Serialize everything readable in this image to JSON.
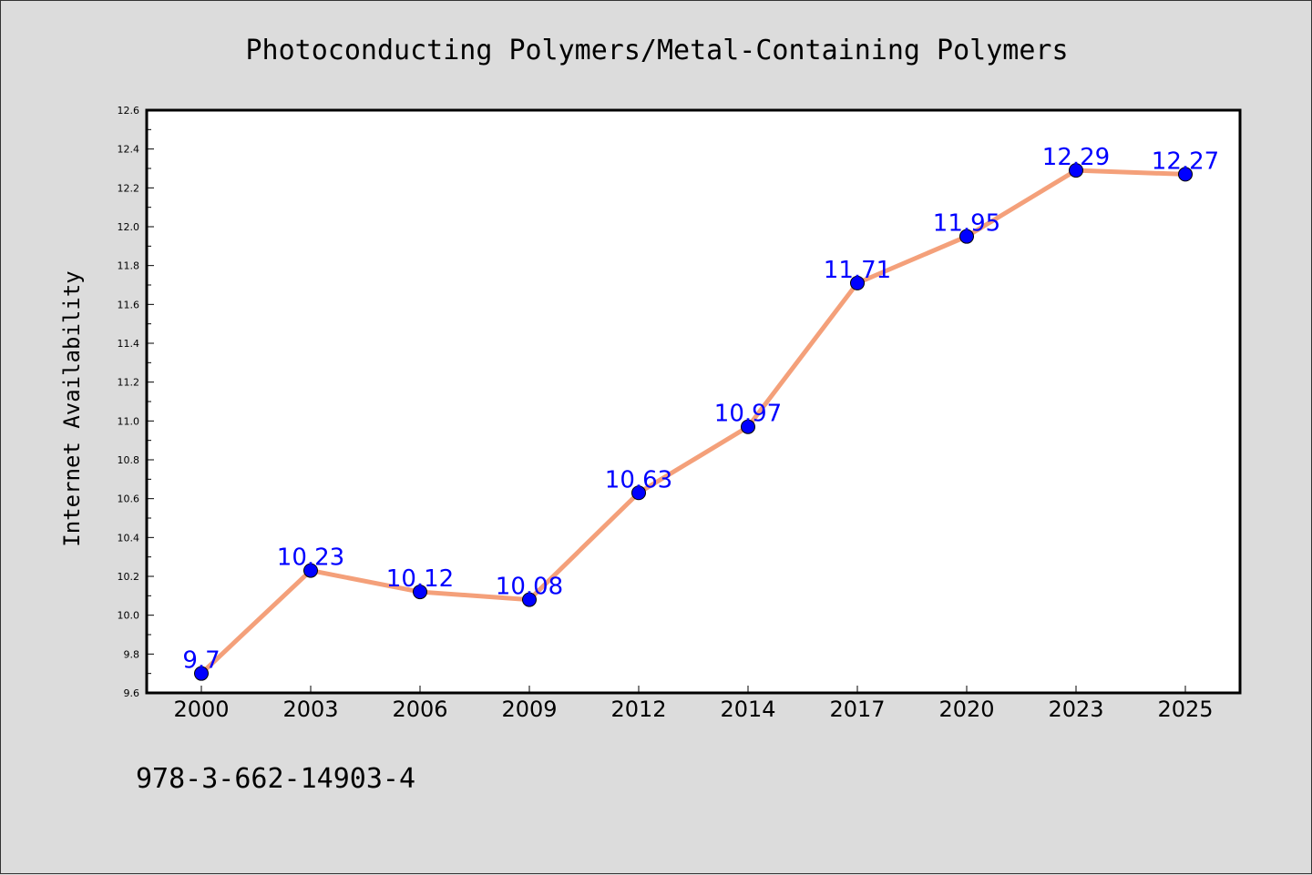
{
  "chart_data": {
    "type": "line",
    "title": "Photoconducting Polymers/Metal-Containing Polymers",
    "xlabel": "",
    "ylabel": "Internet Availability",
    "categories": [
      "2000",
      "2003",
      "2006",
      "2009",
      "2012",
      "2014",
      "2017",
      "2020",
      "2023",
      "2025"
    ],
    "series": [
      {
        "values": [
          9.7,
          10.23,
          10.12,
          10.08,
          10.63,
          10.97,
          11.71,
          11.95,
          12.29,
          12.27
        ],
        "labels": [
          "9.7",
          "10.23",
          "10.12",
          "10.08",
          "10.63",
          "10.97",
          "11.71",
          "11.95",
          "12.29",
          "12.27"
        ],
        "line_color": "#f4a07a",
        "marker_color": "#0000ff"
      }
    ],
    "ylim": [
      9.6,
      12.6
    ],
    "yticks": [
      "9.6",
      "9.8",
      "10.0",
      "10.2",
      "10.4",
      "10.6",
      "10.8",
      "11.0",
      "11.2",
      "11.4",
      "11.6",
      "11.8",
      "12.0",
      "12.2",
      "12.4",
      "12.6"
    ],
    "grid": false,
    "legend": "none",
    "data_label_color": "#0000ff"
  },
  "footnote": "978-3-662-14903-4",
  "colors": {
    "background": "#dcdcdc",
    "plot_area": "#ffffff",
    "axis": "#000000"
  }
}
